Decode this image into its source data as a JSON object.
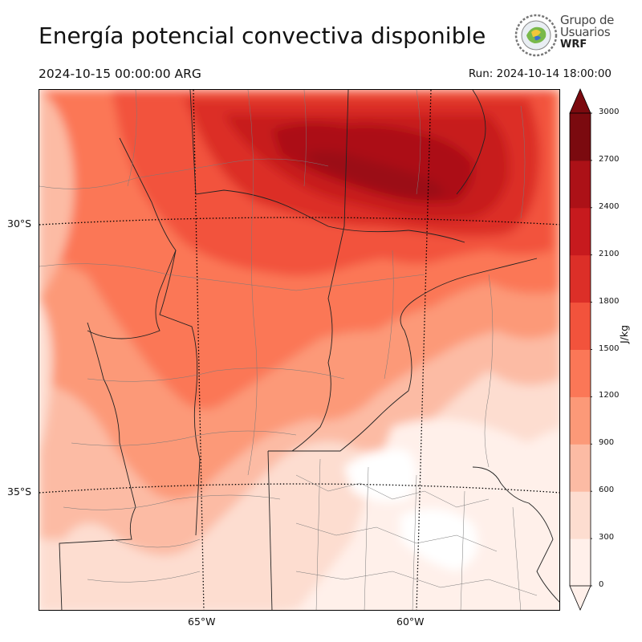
{
  "header": {
    "title": "Energía potencial convectiva disponible",
    "valid_time": "2024-10-15 00:00:00 ARG",
    "run_time": "Run: 2024-10-14 18:00:00"
  },
  "logo": {
    "line1": "Grupo de",
    "line2": "Usuarios",
    "line3": "WRF"
  },
  "map": {
    "variable": "CAPE",
    "lat_labels": [
      "30°S",
      "35°S"
    ],
    "lon_labels": [
      "65°W",
      "60°W"
    ]
  },
  "colorbar": {
    "units": "J/kg",
    "levels": [
      0,
      300,
      600,
      900,
      1200,
      1500,
      1800,
      2100,
      2400,
      2700,
      3000
    ],
    "colors": [
      "#fff0ea",
      "#fdddd0",
      "#fcbba4",
      "#fc9978",
      "#fb7757",
      "#f2533c",
      "#dc2f28",
      "#c71a1e",
      "#ac1117",
      "#7b0a0f"
    ],
    "extend": "both"
  }
}
